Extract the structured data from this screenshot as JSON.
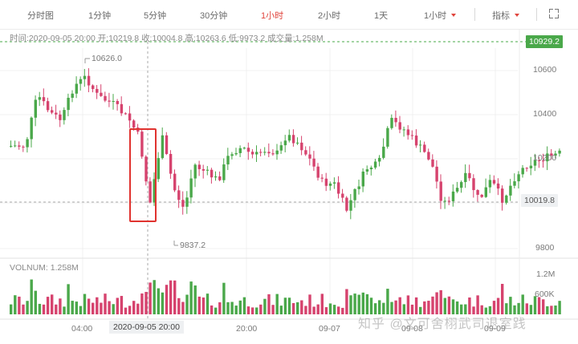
{
  "toolbar": {
    "tabs": [
      {
        "label": "分时图"
      },
      {
        "label": "1分钟"
      },
      {
        "label": "5分钟"
      },
      {
        "label": "30分钟"
      },
      {
        "label": "1小时"
      },
      {
        "label": "2小时"
      },
      {
        "label": "1天"
      }
    ],
    "active_tab": "1小时",
    "period_dropdown": "1小时",
    "indicator_dropdown": "指标",
    "accent_color": "#e0443c"
  },
  "info_bar": {
    "time_label": "时间:",
    "time": "2020-09-05 20:00",
    "open_label": "开:",
    "open": "10219.8",
    "close_label": "收:",
    "close": "10004.8",
    "high_label": "高:",
    "high": "10263.6",
    "low_label": "低:",
    "low": "9973.2",
    "volume_label": "成交量:",
    "volume": "1.258M"
  },
  "price_axis": {
    "ticks": [
      "10600",
      "10400",
      "10200",
      "9800"
    ],
    "current_price": "10929.2",
    "crosshair_price": "10019.8"
  },
  "annotations": {
    "max_label": "10626.0",
    "min_label": "9837.2"
  },
  "volume_panel": {
    "label": "VOLNUM: 1.258M",
    "ticks": [
      "1.2M",
      "600K"
    ]
  },
  "time_axis": {
    "labels": [
      "04:00",
      "20:00",
      "09-07",
      "09-08",
      "09-09"
    ],
    "crosshair_time": "2020-09-05 20:00"
  },
  "watermark": "知乎 @文可舍栩武司退室践",
  "colors": {
    "up": "#4aa84a",
    "down": "#d6436e",
    "highlight_box": "#e0332f"
  }
}
